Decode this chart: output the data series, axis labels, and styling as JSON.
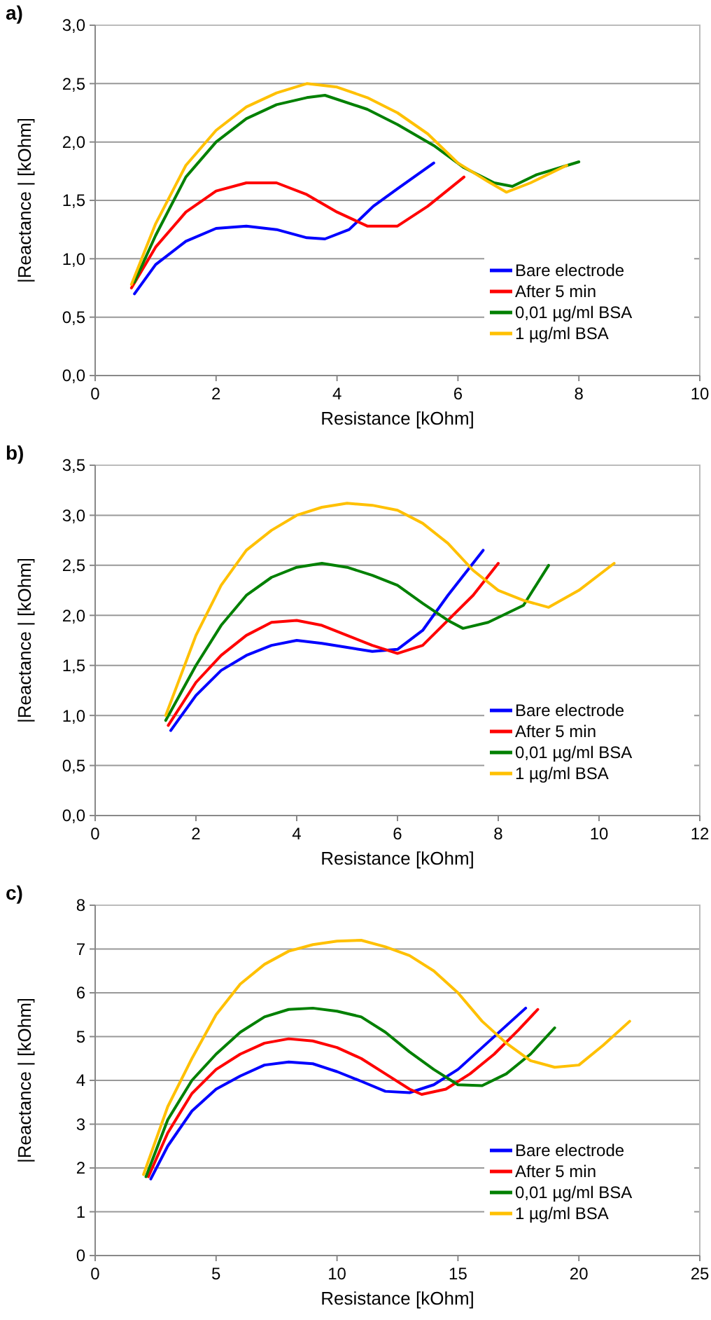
{
  "chart_data": [
    {
      "type": "line",
      "title": "a)",
      "xlabel": "Resistance [kOhm]",
      "ylabel": "|Reactance | [kOhm]",
      "xlim": [
        0,
        10
      ],
      "xticks": [
        0,
        2,
        4,
        6,
        8,
        10
      ],
      "ylim": [
        0,
        3
      ],
      "yticks": [
        {
          "value": 0,
          "label": "0,0"
        },
        {
          "value": 0.5,
          "label": "0,5"
        },
        {
          "value": 1,
          "label": "1,0"
        },
        {
          "value": 1.5,
          "label": "1,5"
        },
        {
          "value": 2,
          "label": "2,0"
        },
        {
          "value": 2.5,
          "label": "2,5"
        },
        {
          "value": 3,
          "label": "3,0"
        }
      ],
      "grid": "y",
      "legend": "bottom right",
      "line_style": "solid",
      "series": [
        {
          "name": "Bare electrode",
          "color": "#0000ff",
          "x": [
            0.65,
            1,
            1.5,
            2,
            2.5,
            3,
            3.5,
            3.8,
            4.2,
            4.6,
            5,
            5.6
          ],
          "values": [
            0.7,
            0.95,
            1.15,
            1.26,
            1.28,
            1.25,
            1.18,
            1.17,
            1.25,
            1.45,
            1.6,
            1.82
          ]
        },
        {
          "name": "After 5 min",
          "color": "#ff0000",
          "x": [
            0.6,
            1,
            1.5,
            2,
            2.5,
            3,
            3.5,
            4,
            4.5,
            5,
            5.5,
            6.1
          ],
          "values": [
            0.75,
            1.1,
            1.4,
            1.58,
            1.65,
            1.65,
            1.55,
            1.4,
            1.28,
            1.28,
            1.45,
            1.7
          ]
        },
        {
          "name": "0,01 µg/ml BSA",
          "color": "#008000",
          "x": [
            0.65,
            1,
            1.5,
            2,
            2.5,
            3,
            3.5,
            3.8,
            4.5,
            5,
            5.6,
            6.1,
            6.6,
            6.9,
            7.3,
            8
          ],
          "values": [
            0.8,
            1.2,
            1.7,
            2.0,
            2.2,
            2.32,
            2.38,
            2.4,
            2.28,
            2.15,
            1.97,
            1.78,
            1.65,
            1.62,
            1.72,
            1.83
          ]
        },
        {
          "name": "1 µg/ml BSA",
          "color": "#ffc000",
          "x": [
            0.6,
            1,
            1.5,
            2,
            2.5,
            3,
            3.5,
            4,
            4.5,
            5,
            5.5,
            6,
            6.5,
            6.8,
            7.2,
            7.8
          ],
          "values": [
            0.78,
            1.3,
            1.8,
            2.1,
            2.3,
            2.42,
            2.5,
            2.47,
            2.38,
            2.25,
            2.07,
            1.82,
            1.66,
            1.57,
            1.65,
            1.8
          ]
        }
      ]
    },
    {
      "type": "line",
      "title": "b)",
      "xlabel": "Resistance [kOhm]",
      "ylabel": "|Reactance | [kOhm]",
      "xlim": [
        0,
        12
      ],
      "xticks": [
        0,
        2,
        4,
        6,
        8,
        10,
        12
      ],
      "ylim": [
        0,
        3.5
      ],
      "yticks": [
        {
          "value": 0,
          "label": "0,0"
        },
        {
          "value": 0.5,
          "label": "0,5"
        },
        {
          "value": 1,
          "label": "1,0"
        },
        {
          "value": 1.5,
          "label": "1,5"
        },
        {
          "value": 2,
          "label": "2,0"
        },
        {
          "value": 2.5,
          "label": "2,5"
        },
        {
          "value": 3,
          "label": "3,0"
        },
        {
          "value": 3.5,
          "label": "3,5"
        }
      ],
      "grid": "y",
      "legend": "bottom right",
      "line_style": "solid",
      "series": [
        {
          "name": "Bare electrode",
          "color": "#0000ff",
          "x": [
            1.5,
            2,
            2.5,
            3,
            3.5,
            4,
            4.5,
            5,
            5.5,
            6,
            6.5,
            7,
            7.7
          ],
          "values": [
            0.85,
            1.2,
            1.45,
            1.6,
            1.7,
            1.75,
            1.72,
            1.68,
            1.64,
            1.66,
            1.85,
            2.2,
            2.65
          ]
        },
        {
          "name": "After 5 min",
          "color": "#ff0000",
          "x": [
            1.45,
            2,
            2.5,
            3,
            3.5,
            4,
            4.5,
            5,
            5.5,
            6,
            6.5,
            7,
            7.5,
            8
          ],
          "values": [
            0.9,
            1.33,
            1.6,
            1.8,
            1.93,
            1.95,
            1.9,
            1.8,
            1.7,
            1.62,
            1.7,
            1.95,
            2.2,
            2.52
          ]
        },
        {
          "name": "0,01 µg/ml BSA",
          "color": "#008000",
          "x": [
            1.4,
            2,
            2.5,
            3,
            3.5,
            4,
            4.5,
            5,
            5.5,
            6,
            6.5,
            7,
            7.3,
            7.8,
            8.5,
            9
          ],
          "values": [
            0.95,
            1.5,
            1.9,
            2.2,
            2.38,
            2.48,
            2.52,
            2.48,
            2.4,
            2.3,
            2.12,
            1.95,
            1.87,
            1.93,
            2.1,
            2.5
          ]
        },
        {
          "name": "1 µg/ml BSA",
          "color": "#ffc000",
          "x": [
            1.4,
            2,
            2.5,
            3,
            3.5,
            4,
            4.5,
            5,
            5.5,
            6,
            6.5,
            7,
            7.5,
            8,
            8.5,
            9,
            9.6,
            10.3
          ],
          "values": [
            1.0,
            1.8,
            2.3,
            2.65,
            2.85,
            3.0,
            3.08,
            3.12,
            3.1,
            3.05,
            2.92,
            2.72,
            2.45,
            2.25,
            2.15,
            2.08,
            2.25,
            2.52
          ]
        }
      ]
    },
    {
      "type": "line",
      "title": "c)",
      "xlabel": "Resistance [kOhm]",
      "ylabel": "|Reactance | [kOhm]",
      "xlim": [
        0,
        25
      ],
      "xticks": [
        0,
        5,
        10,
        15,
        20,
        25
      ],
      "ylim": [
        0,
        8
      ],
      "yticks": [
        0,
        1,
        2,
        3,
        4,
        5,
        6,
        7,
        8
      ],
      "grid": "y",
      "legend": "bottom right",
      "line_style": "solid",
      "series": [
        {
          "name": "Bare electrode",
          "color": "#0000ff",
          "x": [
            2.3,
            3,
            4,
            5,
            6,
            7,
            8,
            9,
            10,
            11,
            12,
            13,
            14,
            15,
            16,
            17,
            17.8
          ],
          "values": [
            1.75,
            2.5,
            3.3,
            3.8,
            4.1,
            4.35,
            4.42,
            4.38,
            4.2,
            3.98,
            3.75,
            3.72,
            3.9,
            4.25,
            4.75,
            5.25,
            5.65
          ]
        },
        {
          "name": "After 5 min",
          "color": "#ff0000",
          "x": [
            2.2,
            3,
            4,
            5,
            6,
            7,
            8,
            9,
            10,
            11,
            12,
            13,
            13.5,
            14.5,
            15.5,
            16.5,
            17.5,
            18.3
          ],
          "values": [
            1.8,
            2.8,
            3.7,
            4.25,
            4.6,
            4.85,
            4.95,
            4.9,
            4.75,
            4.5,
            4.15,
            3.8,
            3.68,
            3.8,
            4.15,
            4.6,
            5.15,
            5.62
          ]
        },
        {
          "name": "0,01 µg/ml BSA",
          "color": "#008000",
          "x": [
            2.1,
            3,
            4,
            5,
            6,
            7,
            8,
            9,
            10,
            11,
            12,
            13,
            14,
            15,
            16,
            17,
            18,
            19
          ],
          "values": [
            1.8,
            3.1,
            4.0,
            4.6,
            5.1,
            5.45,
            5.62,
            5.65,
            5.58,
            5.45,
            5.1,
            4.65,
            4.25,
            3.9,
            3.88,
            4.15,
            4.6,
            5.2
          ]
        },
        {
          "name": "1 µg/ml BSA",
          "color": "#ffc000",
          "x": [
            2.0,
            3,
            4,
            5,
            6,
            7,
            8,
            9,
            10,
            11,
            12,
            13,
            14,
            15,
            16,
            17,
            18,
            19,
            20,
            21,
            22.1
          ],
          "values": [
            1.85,
            3.4,
            4.5,
            5.5,
            6.2,
            6.65,
            6.95,
            7.1,
            7.18,
            7.2,
            7.05,
            6.85,
            6.5,
            6.0,
            5.35,
            4.85,
            4.45,
            4.3,
            4.35,
            4.8,
            5.35
          ]
        }
      ]
    }
  ]
}
